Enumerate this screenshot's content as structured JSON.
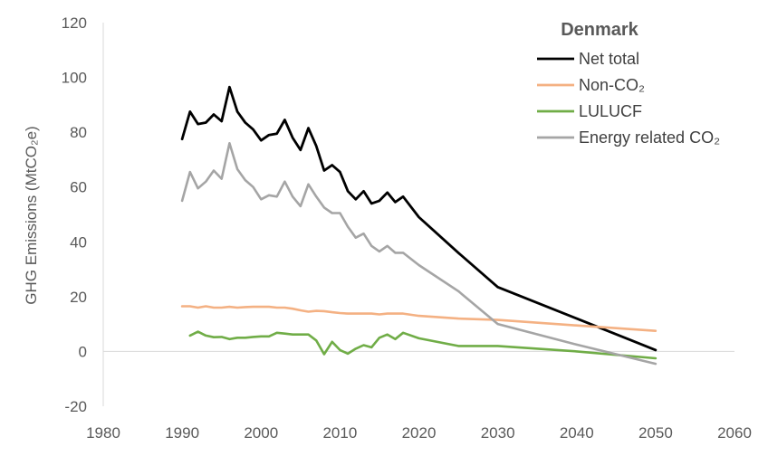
{
  "chart_data": {
    "type": "line",
    "title": "Denmark",
    "xlabel": "",
    "ylabel": "GHG Emissions (MtCO₂e)",
    "xlim": [
      1980,
      2060
    ],
    "ylim": [
      -20,
      120
    ],
    "x_ticks": [
      "1980",
      "1990",
      "2000",
      "2010",
      "2020",
      "2030",
      "2040",
      "2050",
      "2060"
    ],
    "y_ticks": [
      "-20",
      "0",
      "20",
      "40",
      "60",
      "80",
      "100",
      "120"
    ],
    "grid": false,
    "legend": "top-right",
    "series": [
      {
        "name": "Net total",
        "color": "#000000",
        "points": [
          [
            1990,
            77.5
          ],
          [
            1991,
            87.5
          ],
          [
            1992,
            83
          ],
          [
            1993,
            83.5
          ],
          [
            1994,
            86.5
          ],
          [
            1995,
            84
          ],
          [
            1996,
            96.5
          ],
          [
            1997,
            87.5
          ],
          [
            1998,
            83.5
          ],
          [
            1999,
            81
          ],
          [
            2000,
            77
          ],
          [
            2001,
            79
          ],
          [
            2002,
            79.5
          ],
          [
            2003,
            84.5
          ],
          [
            2004,
            78
          ],
          [
            2005,
            73.5
          ],
          [
            2006,
            81.5
          ],
          [
            2007,
            75
          ],
          [
            2008,
            66
          ],
          [
            2009,
            68
          ],
          [
            2010,
            65.5
          ],
          [
            2011,
            58.5
          ],
          [
            2012,
            55.5
          ],
          [
            2013,
            58.5
          ],
          [
            2014,
            54
          ],
          [
            2015,
            55
          ],
          [
            2016,
            58
          ],
          [
            2017,
            54.5
          ],
          [
            2018,
            56.5
          ],
          [
            2020,
            49
          ],
          [
            2025,
            36
          ],
          [
            2030,
            23.5
          ],
          [
            2040,
            12
          ],
          [
            2050,
            0.5
          ]
        ]
      },
      {
        "name": "Non-CO₂",
        "color": "#f4b183",
        "points": [
          [
            1990,
            16.5
          ],
          [
            1991,
            16.5
          ],
          [
            1992,
            16
          ],
          [
            1993,
            16.5
          ],
          [
            1994,
            16
          ],
          [
            1995,
            16
          ],
          [
            1996,
            16.3
          ],
          [
            1997,
            16
          ],
          [
            1998,
            16.2
          ],
          [
            1999,
            16.3
          ],
          [
            2000,
            16.3
          ],
          [
            2001,
            16.3
          ],
          [
            2002,
            16
          ],
          [
            2003,
            16
          ],
          [
            2004,
            15.6
          ],
          [
            2005,
            15
          ],
          [
            2006,
            14.5
          ],
          [
            2007,
            14.8
          ],
          [
            2008,
            14.7
          ],
          [
            2009,
            14.3
          ],
          [
            2010,
            14
          ],
          [
            2011,
            13.8
          ],
          [
            2012,
            13.8
          ],
          [
            2013,
            13.8
          ],
          [
            2014,
            13.8
          ],
          [
            2015,
            13.5
          ],
          [
            2016,
            13.8
          ],
          [
            2017,
            13.8
          ],
          [
            2018,
            13.8
          ],
          [
            2020,
            13
          ],
          [
            2025,
            12
          ],
          [
            2030,
            11.5
          ],
          [
            2040,
            9.5
          ],
          [
            2050,
            7.5
          ]
        ]
      },
      {
        "name": "LULUCF",
        "color": "#70ad47",
        "points": [
          [
            1991,
            5.8
          ],
          [
            1992,
            7.2
          ],
          [
            1993,
            5.8
          ],
          [
            1994,
            5.2
          ],
          [
            1995,
            5.3
          ],
          [
            1996,
            4.5
          ],
          [
            1997,
            5
          ],
          [
            1998,
            5
          ],
          [
            1999,
            5.3
          ],
          [
            2000,
            5.5
          ],
          [
            2001,
            5.5
          ],
          [
            2002,
            6.8
          ],
          [
            2003,
            6.5
          ],
          [
            2004,
            6.2
          ],
          [
            2005,
            6.2
          ],
          [
            2006,
            6.2
          ],
          [
            2007,
            4
          ],
          [
            2008,
            -1
          ],
          [
            2009,
            3.5
          ],
          [
            2010,
            0.5
          ],
          [
            2011,
            -0.8
          ],
          [
            2012,
            1
          ],
          [
            2013,
            2.3
          ],
          [
            2014,
            1.5
          ],
          [
            2015,
            5
          ],
          [
            2016,
            6.2
          ],
          [
            2017,
            4.5
          ],
          [
            2018,
            6.8
          ],
          [
            2020,
            4.8
          ],
          [
            2025,
            2
          ],
          [
            2030,
            2
          ],
          [
            2040,
            0
          ],
          [
            2050,
            -2.5
          ]
        ]
      },
      {
        "name": "Energy related CO₂",
        "color": "#a5a5a5",
        "points": [
          [
            1990,
            55
          ],
          [
            1991,
            65.5
          ],
          [
            1992,
            59.5
          ],
          [
            1993,
            62
          ],
          [
            1994,
            66
          ],
          [
            1995,
            63
          ],
          [
            1996,
            76
          ],
          [
            1997,
            66.5
          ],
          [
            1998,
            62.5
          ],
          [
            1999,
            60
          ],
          [
            2000,
            55.5
          ],
          [
            2001,
            57
          ],
          [
            2002,
            56.5
          ],
          [
            2003,
            62
          ],
          [
            2004,
            56.5
          ],
          [
            2005,
            53
          ],
          [
            2006,
            61
          ],
          [
            2007,
            56.5
          ],
          [
            2008,
            52.5
          ],
          [
            2009,
            50.5
          ],
          [
            2010,
            50.5
          ],
          [
            2011,
            45.5
          ],
          [
            2012,
            41.5
          ],
          [
            2013,
            43
          ],
          [
            2014,
            38.5
          ],
          [
            2015,
            36.5
          ],
          [
            2016,
            38.5
          ],
          [
            2017,
            36
          ],
          [
            2018,
            36
          ],
          [
            2020,
            31.5
          ],
          [
            2025,
            22
          ],
          [
            2030,
            10
          ],
          [
            2040,
            2.5
          ],
          [
            2050,
            -4.5
          ]
        ]
      }
    ]
  }
}
